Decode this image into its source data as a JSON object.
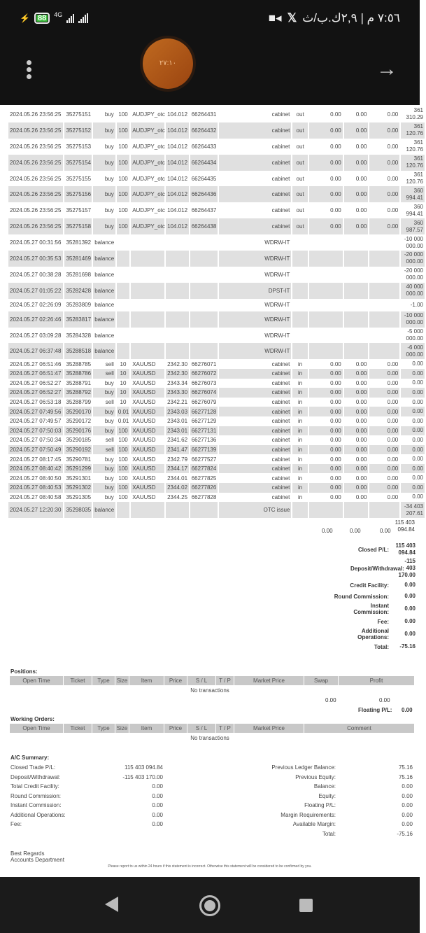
{
  "status_bar": {
    "battery": "88",
    "network": "4G",
    "time": "٧:٥٦ م | ٢,٩ك.ب/ث",
    "icons": [
      "charging-icon",
      "battery-icon",
      "signal-icon",
      "signal-icon",
      "video-icon",
      "x-app-icon"
    ]
  },
  "header": {
    "timer": "٢٧:١٠",
    "menu_icon": "more-vert-icon",
    "forward_icon": "arrow-right-icon"
  },
  "deals": [
    [
      "2024.05.26 23:56:25",
      "35275151",
      "buy",
      "100",
      "AUDJPY_otc",
      "104.012",
      "66264431",
      "cabinet",
      "out",
      "0.00",
      "0.00",
      "0.00",
      "361 310.29"
    ],
    [
      "2024.05.26 23:56:25",
      "35275152",
      "buy",
      "100",
      "AUDJPY_otc",
      "104.012",
      "66264432",
      "cabinet",
      "out",
      "0.00",
      "0.00",
      "0.00",
      "361 120.76"
    ],
    [
      "2024.05.26 23:56:25",
      "35275153",
      "buy",
      "100",
      "AUDJPY_otc",
      "104.012",
      "66264433",
      "cabinet",
      "out",
      "0.00",
      "0.00",
      "0.00",
      "361 120.76"
    ],
    [
      "2024.05.26 23:56:25",
      "35275154",
      "buy",
      "100",
      "AUDJPY_otc",
      "104.012",
      "66264434",
      "cabinet",
      "out",
      "0.00",
      "0.00",
      "0.00",
      "361 120.76"
    ],
    [
      "2024.05.26 23:56:25",
      "35275155",
      "buy",
      "100",
      "AUDJPY_otc",
      "104.012",
      "66264435",
      "cabinet",
      "out",
      "0.00",
      "0.00",
      "0.00",
      "361 120.76"
    ],
    [
      "2024.05.26 23:56:25",
      "35275156",
      "buy",
      "100",
      "AUDJPY_otc",
      "104.012",
      "66264436",
      "cabinet",
      "out",
      "0.00",
      "0.00",
      "0.00",
      "360 994.41"
    ],
    [
      "2024.05.26 23:56:25",
      "35275157",
      "buy",
      "100",
      "AUDJPY_otc",
      "104.012",
      "66264437",
      "cabinet",
      "out",
      "0.00",
      "0.00",
      "0.00",
      "360 994.41"
    ],
    [
      "2024.05.26 23:56:25",
      "35275158",
      "buy",
      "100",
      "AUDJPY_otc",
      "104.012",
      "66264438",
      "cabinet",
      "out",
      "0.00",
      "0.00",
      "0.00",
      "360 987.57"
    ],
    [
      "2024.05.27 00:31:56",
      "35281392",
      "balance",
      "",
      "",
      "",
      "",
      "WDRW-IT",
      "",
      "",
      "",
      "",
      "-10 000 000.00"
    ],
    [
      "2024.05.27 00:35:53",
      "35281469",
      "balance",
      "",
      "",
      "",
      "",
      "WDRW-IT",
      "",
      "",
      "",
      "",
      "-20 000 000.00"
    ],
    [
      "2024.05.27 00:38:28",
      "35281698",
      "balance",
      "",
      "",
      "",
      "",
      "WDRW-IT",
      "",
      "",
      "",
      "",
      "-20 000 000.00"
    ],
    [
      "2024.05.27 01:05:22",
      "35282428",
      "balance",
      "",
      "",
      "",
      "",
      "DPST-IT",
      "",
      "",
      "",
      "",
      "40 000 000.00"
    ],
    [
      "2024.05.27 02:26:09",
      "35283809",
      "balance",
      "",
      "",
      "",
      "",
      "WDRW-IT",
      "",
      "",
      "",
      "",
      "-1.00"
    ],
    [
      "2024.05.27 02:26:46",
      "35283817",
      "balance",
      "",
      "",
      "",
      "",
      "WDRW-IT",
      "",
      "",
      "",
      "",
      "-10 000 000.00"
    ],
    [
      "2024.05.27 03:09:28",
      "35284328",
      "balance",
      "",
      "",
      "",
      "",
      "WDRW-IT",
      "",
      "",
      "",
      "",
      "-5 000 000.00"
    ],
    [
      "2024.05.27 06:37:48",
      "35288518",
      "balance",
      "",
      "",
      "",
      "",
      "WDRW-IT",
      "",
      "",
      "",
      "",
      "-6 000 000.00"
    ],
    [
      "2024.05.27 06:51:46",
      "35288785",
      "sell",
      "10",
      "XAUUSD",
      "2342.30",
      "66276071",
      "cabinet",
      "in",
      "0.00",
      "0.00",
      "0.00",
      "0.00"
    ],
    [
      "2024.05.27 06:51:47",
      "35288786",
      "sell",
      "10",
      "XAUUSD",
      "2342.30",
      "66276072",
      "cabinet",
      "in",
      "0.00",
      "0.00",
      "0.00",
      "0.00"
    ],
    [
      "2024.05.27 06:52:27",
      "35288791",
      "buy",
      "10",
      "XAUUSD",
      "2343.34",
      "66276073",
      "cabinet",
      "in",
      "0.00",
      "0.00",
      "0.00",
      "0.00"
    ],
    [
      "2024.05.27 06:52:27",
      "35288792",
      "buy",
      "10",
      "XAUUSD",
      "2343.30",
      "66276074",
      "cabinet",
      "in",
      "0.00",
      "0.00",
      "0.00",
      "0.00"
    ],
    [
      "2024.05.27 06:53:18",
      "35288799",
      "sell",
      "10",
      "XAUUSD",
      "2342.21",
      "66276079",
      "cabinet",
      "in",
      "0.00",
      "0.00",
      "0.00",
      "0.00"
    ],
    [
      "2024.05.27 07:49:56",
      "35290170",
      "buy",
      "0.01",
      "XAUUSD",
      "2343.03",
      "66277128",
      "cabinet",
      "in",
      "0.00",
      "0.00",
      "0.00",
      "0.00"
    ],
    [
      "2024.05.27 07:49:57",
      "35290172",
      "buy",
      "0.01",
      "XAUUSD",
      "2343.01",
      "66277129",
      "cabinet",
      "in",
      "0.00",
      "0.00",
      "0.00",
      "0.00"
    ],
    [
      "2024.05.27 07:50:03",
      "35290176",
      "buy",
      "100",
      "XAUUSD",
      "2343.01",
      "66277131",
      "cabinet",
      "in",
      "0.00",
      "0.00",
      "0.00",
      "0.00"
    ],
    [
      "2024.05.27 07:50:34",
      "35290185",
      "sell",
      "100",
      "XAUUSD",
      "2341.62",
      "66277136",
      "cabinet",
      "in",
      "0.00",
      "0.00",
      "0.00",
      "0.00"
    ],
    [
      "2024.05.27 07:50:49",
      "35290192",
      "sell",
      "100",
      "XAUUSD",
      "2341.47",
      "66277139",
      "cabinet",
      "in",
      "0.00",
      "0.00",
      "0.00",
      "0.00"
    ],
    [
      "2024.05.27 08:17:45",
      "35290781",
      "buy",
      "100",
      "XAUUSD",
      "2342.79",
      "66277527",
      "cabinet",
      "in",
      "0.00",
      "0.00",
      "0.00",
      "0.00"
    ],
    [
      "2024.05.27 08:40:42",
      "35291299",
      "buy",
      "100",
      "XAUUSD",
      "2344.17",
      "66277824",
      "cabinet",
      "in",
      "0.00",
      "0.00",
      "0.00",
      "0.00"
    ],
    [
      "2024.05.27 08:40:50",
      "35291301",
      "buy",
      "100",
      "XAUUSD",
      "2344.01",
      "66277825",
      "cabinet",
      "in",
      "0.00",
      "0.00",
      "0.00",
      "0.00"
    ],
    [
      "2024.05.27 08:40:53",
      "35291302",
      "buy",
      "100",
      "XAUUSD",
      "2344.02",
      "66277826",
      "cabinet",
      "in",
      "0.00",
      "0.00",
      "0.00",
      "0.00"
    ],
    [
      "2024.05.27 08:40:58",
      "35291305",
      "buy",
      "100",
      "XAUUSD",
      "2344.25",
      "66277828",
      "cabinet",
      "in",
      "0.00",
      "0.00",
      "0.00",
      "0.00"
    ],
    [
      "2024.05.27 12:20:30",
      "35298035",
      "balance",
      "",
      "",
      "",
      "",
      "OTC issue",
      "",
      "",
      "",
      "",
      "-34 403 207.61"
    ]
  ],
  "deal_totals": {
    "commission": "0.00",
    "swap": "0.00",
    "taxes": "0.00",
    "profit": "115 403 094.84"
  },
  "closed_summary": [
    {
      "label": "Closed P/L:",
      "value": "115 403 094.84"
    },
    {
      "label": "Deposit/Withdrawal:",
      "value": "-115 403 170.00"
    },
    {
      "label": "Credit Facility:",
      "value": "0.00"
    },
    {
      "label": "Round Commission:",
      "value": "0.00"
    },
    {
      "label": "Instant Commission:",
      "value": "0.00"
    },
    {
      "label": "Fee:",
      "value": "0.00"
    },
    {
      "label": "Additional Operations:",
      "value": "0.00"
    },
    {
      "label": "Total:",
      "value": "-75.16"
    }
  ],
  "positions": {
    "title": "Positions:",
    "columns": [
      "Open Time",
      "Ticket",
      "Type",
      "Size",
      "Item",
      "Price",
      "S / L",
      "T / P",
      "Market Price",
      "Swap",
      "Profit"
    ],
    "empty": "No transactions",
    "swap_total": "0.00",
    "profit_total": "0.00",
    "floating_label": "Floating P/L:",
    "floating_value": "0.00"
  },
  "working_orders": {
    "title": "Working Orders:",
    "columns": [
      "Open Time",
      "Ticket",
      "Type",
      "Size",
      "Item",
      "Price",
      "S / L",
      "T / P",
      "Market Price",
      "Comment"
    ],
    "empty": "No transactions"
  },
  "ac_summary": {
    "title": "A/C Summary:",
    "left": [
      [
        "Closed Trade P/L:",
        "115 403 094.84"
      ],
      [
        "Deposit/Withdrawal:",
        "-115 403 170.00"
      ],
      [
        "Total Credit Facility:",
        "0.00"
      ],
      [
        "Round Commission:",
        "0.00"
      ],
      [
        "Instant Commission:",
        "0.00"
      ],
      [
        "Additional Operations:",
        "0.00"
      ],
      [
        "Fee:",
        "0.00"
      ]
    ],
    "right": [
      [
        "Previous Ledger Balance:",
        "75.16"
      ],
      [
        "Previous Equity:",
        "75.16"
      ],
      [
        "Balance:",
        "0.00"
      ],
      [
        "Equity:",
        "0.00"
      ],
      [
        "Floating P/L:",
        "0.00"
      ],
      [
        "Margin Requirements:",
        "0.00"
      ],
      [
        "Available Margin:",
        "0.00"
      ],
      [
        "Total:",
        "-75.16"
      ]
    ]
  },
  "footer": {
    "regards": "Best Regards",
    "department": "Accounts Department",
    "note": "Please report to us within 24 hours if this statement is incorrect. Otherwise this statement will be considered to be confirmed by you."
  },
  "nav": {
    "back_icon": "back-triangle-icon",
    "home_icon": "home-circle-icon",
    "recents_icon": "recents-square-icon"
  }
}
